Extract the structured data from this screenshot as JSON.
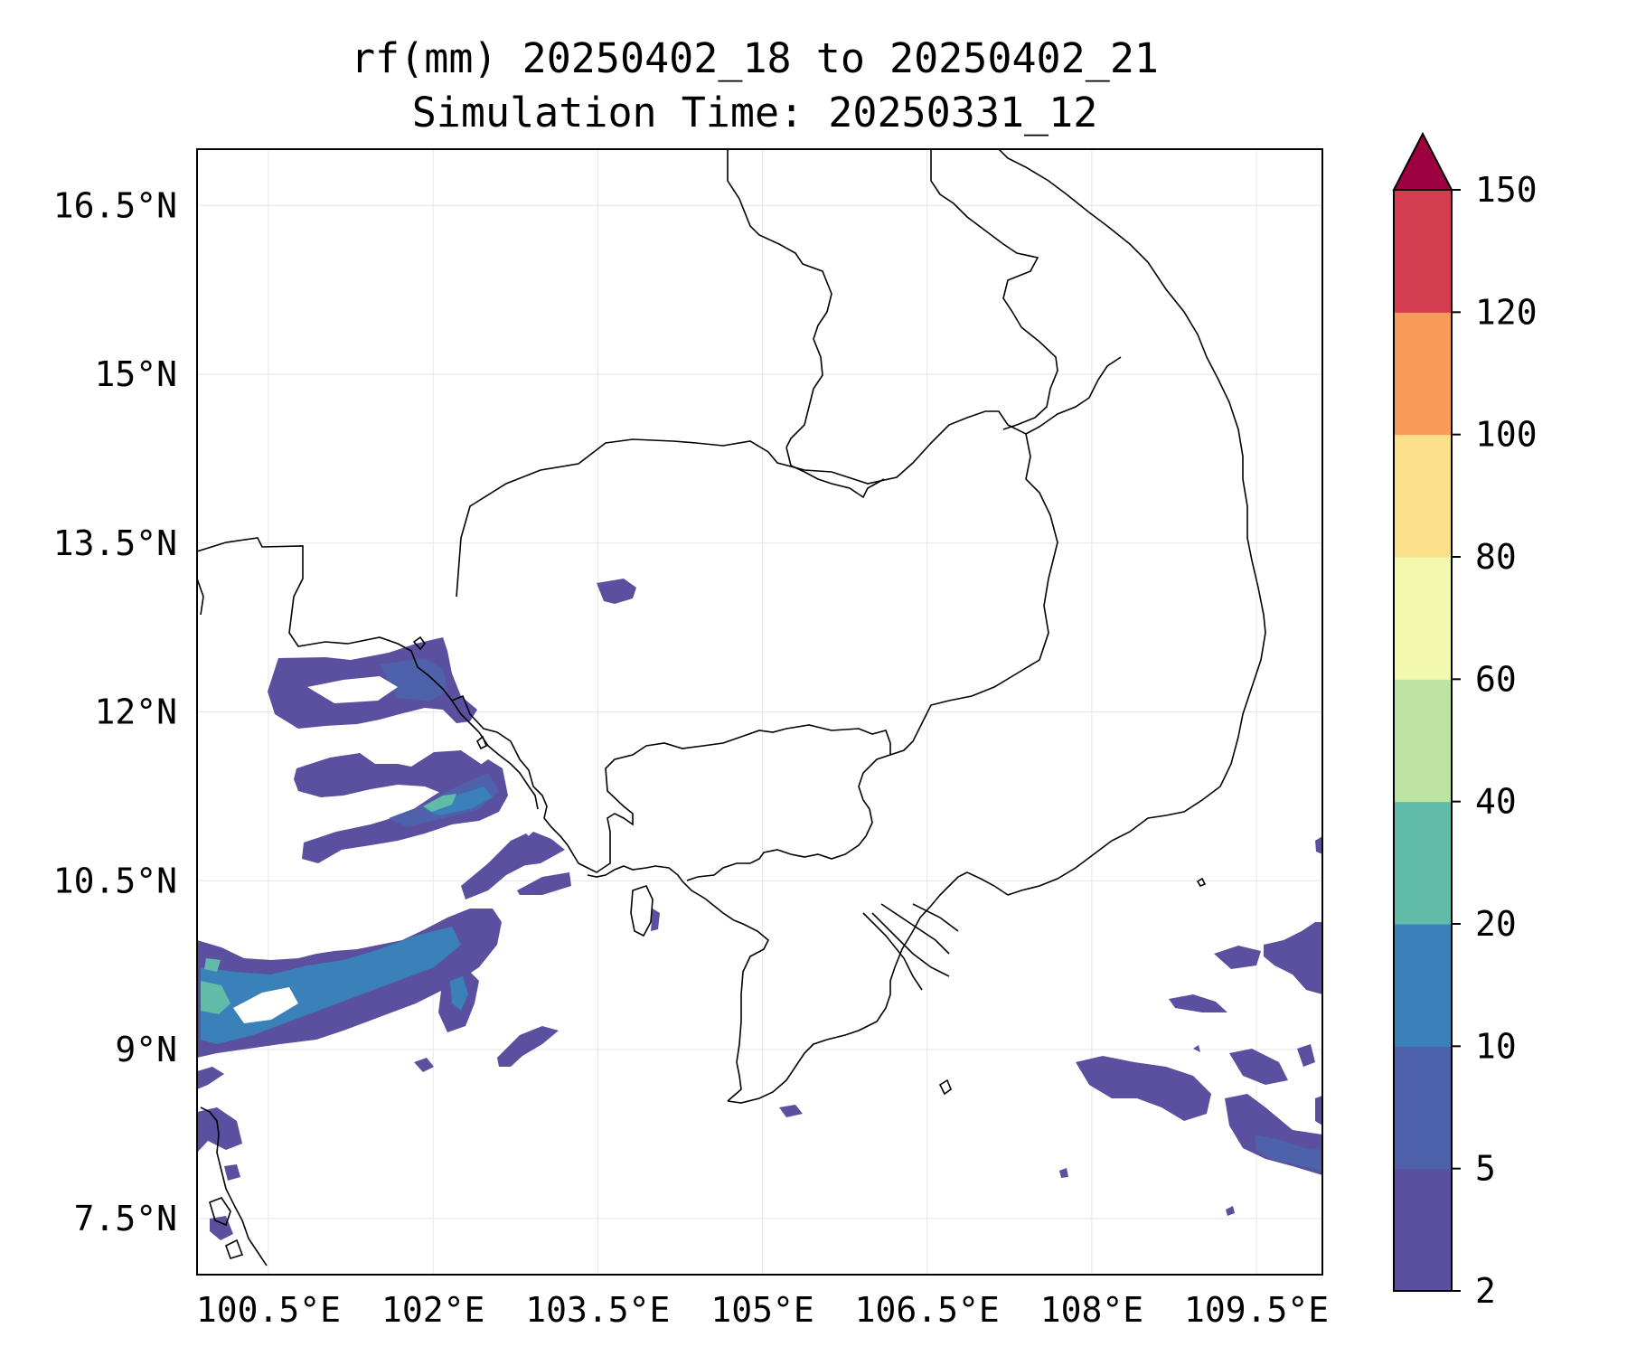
{
  "title": {
    "line1": "rf(mm) 20250402_18 to 20250402_21",
    "line2": "Simulation Time: 20250331_12"
  },
  "map": {
    "lon_range": [
      99.85,
      110.1
    ],
    "lat_range": [
      7.0,
      17.0
    ],
    "lon_ticks": [
      {
        "value": 100.5,
        "label": "100.5°E"
      },
      {
        "value": 102.0,
        "label": "102°E"
      },
      {
        "value": 103.5,
        "label": "103.5°E"
      },
      {
        "value": 105.0,
        "label": "105°E"
      },
      {
        "value": 106.5,
        "label": "106.5°E"
      },
      {
        "value": 108.0,
        "label": "108°E"
      },
      {
        "value": 109.5,
        "label": "109.5°E"
      }
    ],
    "lat_ticks": [
      {
        "value": 16.5,
        "label": "16.5°N"
      },
      {
        "value": 15.0,
        "label": "15°N"
      },
      {
        "value": 13.5,
        "label": "13.5°N"
      },
      {
        "value": 12.0,
        "label": "12°N"
      },
      {
        "value": 10.5,
        "label": "10.5°N"
      },
      {
        "value": 9.0,
        "label": "9°N"
      },
      {
        "value": 7.5,
        "label": "7.5°N"
      }
    ],
    "grid": true
  },
  "colorbar": {
    "levels": [
      {
        "label": "2",
        "color": "#5b4fa0"
      },
      {
        "label": "5",
        "color": "#4e62ac"
      },
      {
        "label": "10",
        "color": "#3a80b9"
      },
      {
        "label": "20",
        "color": "#60bba8"
      },
      {
        "label": "40",
        "color": "#bde3a0"
      },
      {
        "label": "60",
        "color": "#f2f9af"
      },
      {
        "label": "80",
        "color": "#fbdf8a"
      },
      {
        "label": "100",
        "color": "#f99b5b"
      },
      {
        "label": "120",
        "color": "#d43d50"
      },
      {
        "label": "150",
        "color": "#9e0142"
      }
    ],
    "extend": "max"
  }
}
